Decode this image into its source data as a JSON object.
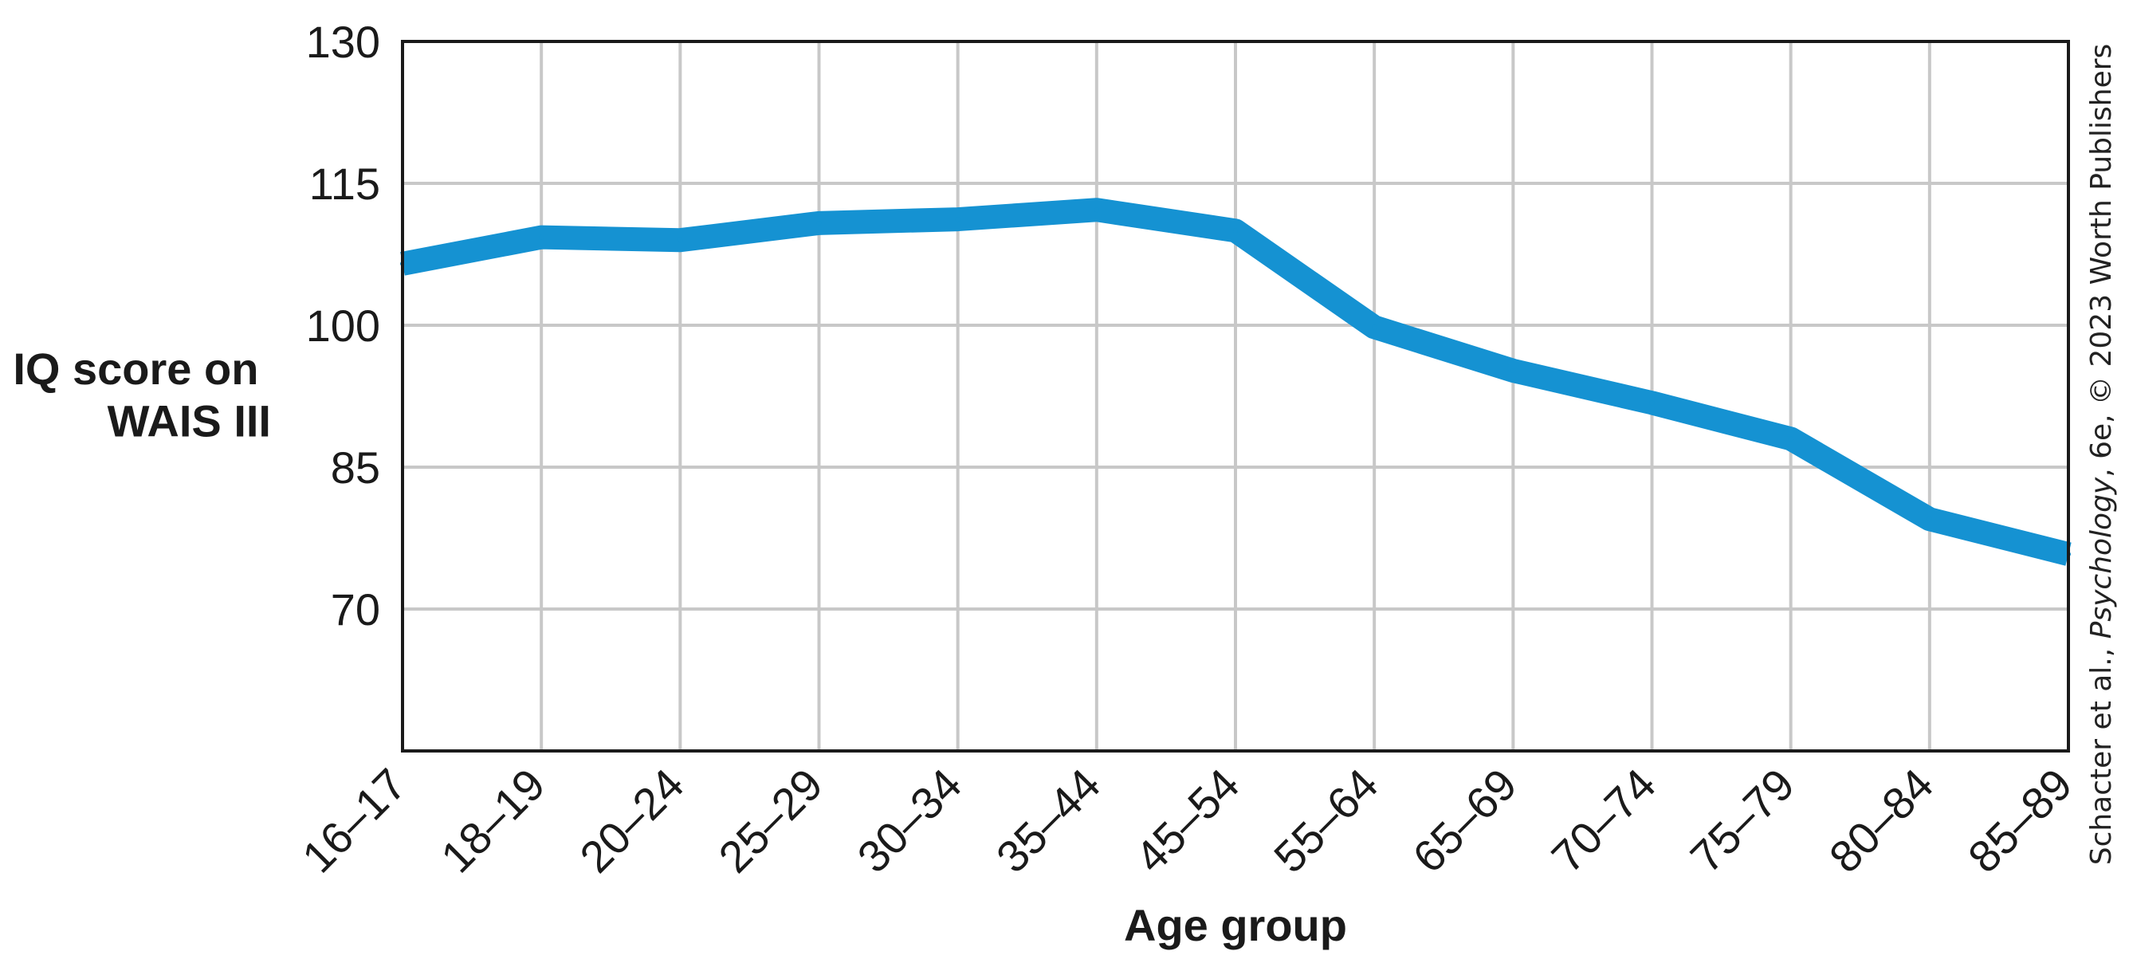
{
  "chart_data": {
    "type": "line",
    "categories": [
      "16–17",
      "18–19",
      "20–24",
      "25–29",
      "30–34",
      "35–44",
      "45–54",
      "55–64",
      "65–69",
      "70–74",
      "75–79",
      "80–84",
      "85–89"
    ],
    "series": [
      {
        "values": [
          106.5,
          109.3,
          109.0,
          110.8,
          111.2,
          112.2,
          110.0,
          99.8,
          95.2,
          91.8,
          88.0,
          79.5,
          75.8
        ],
        "color": "#1592d2"
      }
    ],
    "title": "",
    "xlabel": "Age group",
    "ylabel": [
      "IQ score on",
      "WAIS III"
    ],
    "ylim": [
      55,
      130
    ],
    "yticks": [
      130,
      115,
      100,
      85,
      70
    ],
    "grid": true,
    "gridColor": "#c8c8c8",
    "credit": {
      "prefix": "Schacter et al., ",
      "italic": "Psychology",
      "suffix": ", 6e, © 2023 Worth Publishers"
    }
  }
}
